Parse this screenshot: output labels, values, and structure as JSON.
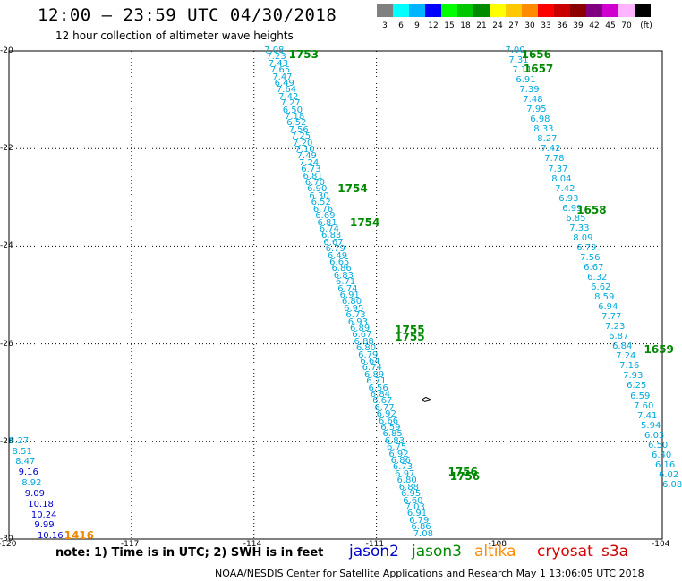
{
  "title": "12:00 – 23:59 UTC 04/30/2018",
  "subtitle": "12 hour collection of altimeter wave heights",
  "legend": {
    "unit": "(ft)",
    "bins": [
      {
        "label": "3",
        "color": "#808080"
      },
      {
        "label": "6",
        "color": "#00ffff"
      },
      {
        "label": "9",
        "color": "#00b4ff"
      },
      {
        "label": "12",
        "color": "#0000ff"
      },
      {
        "label": "15",
        "color": "#00ff00"
      },
      {
        "label": "18",
        "color": "#00c800"
      },
      {
        "label": "21",
        "color": "#008c00"
      },
      {
        "label": "24",
        "color": "#ffff00"
      },
      {
        "label": "27",
        "color": "#ffc800"
      },
      {
        "label": "30",
        "color": "#ff8c00"
      },
      {
        "label": "33",
        "color": "#ff0000"
      },
      {
        "label": "36",
        "color": "#c80000"
      },
      {
        "label": "39",
        "color": "#8c0000"
      },
      {
        "label": "42",
        "color": "#800080"
      },
      {
        "label": "45",
        "color": "#d000d0"
      },
      {
        "label": "70",
        "color": "#ffb4ff"
      },
      {
        "label": "",
        "color": "#000000"
      }
    ]
  },
  "map": {
    "lon_range": [
      -120,
      -104
    ],
    "lat_range": [
      -30,
      -20
    ],
    "lon_ticks": [
      "-120",
      "-117",
      "-114",
      "-111",
      "-108",
      "-104"
    ],
    "lat_ticks": [
      "-20",
      "-22",
      "-24",
      "-26",
      "-28",
      "-30"
    ]
  },
  "tracks": [
    {
      "name": "track-west",
      "color": "#00aadd",
      "start": [
        -113.75,
        -20.0
      ],
      "end": [
        -110.1,
        -29.9
      ],
      "values": [
        "7.08",
        "7.23",
        "7.43",
        "7.65",
        "7.47",
        "6.49",
        "7.64",
        "7.42",
        "7.27",
        "6.50",
        "7.18",
        "6.52",
        "7.56",
        "7.25",
        "7.20",
        "7.10",
        "7.49",
        "7.24",
        "6.73",
        "6.81",
        "6.70",
        "6.90",
        "6.30",
        "6.52",
        "6.76",
        "6.69",
        "6.81",
        "6.74",
        "6.83",
        "6.67",
        "6.79",
        "6.49",
        "6.65",
        "6.86",
        "6.83",
        "6.71",
        "6.74",
        "6.91",
        "6.80",
        "6.95",
        "6.73",
        "6.93",
        "6.89",
        "6.67",
        "6.88",
        "6.80",
        "6.79",
        "6.64",
        "6.74",
        "6.89",
        "6.71",
        "6.56",
        "6.84",
        "6.67",
        "6.77",
        "6.92",
        "6.66",
        "6.59",
        "6.85",
        "6.83",
        "6.75",
        "6.92",
        "6.86",
        "6.73",
        "6.97",
        "6.80",
        "6.88",
        "6.95",
        "6.60",
        "7.03",
        "6.91",
        "6.79",
        "6.86",
        "7.08"
      ]
    },
    {
      "name": "track-east",
      "color": "#00aadd",
      "start": [
        -107.85,
        -20.0
      ],
      "end": [
        -104.0,
        -28.9
      ],
      "values": [
        "7.00",
        "7.31",
        "7.11",
        "6.91",
        "7.39",
        "7.48",
        "7.95",
        "6.98",
        "8.33",
        "8.27",
        "7.42",
        "7.78",
        "7.37",
        "8.04",
        "7.42",
        "6.93",
        "6.99",
        "6.85",
        "7.33",
        "8.09",
        "6.79",
        "7.56",
        "6.67",
        "6.32",
        "6.62",
        "8.59",
        "6.94",
        "7.77",
        "7.23",
        "6.87",
        "6.84",
        "7.24",
        "7.16",
        "7.93",
        "6.25",
        "6.59",
        "7.60",
        "7.41",
        "5.94",
        "6.03",
        "6.50",
        "6.40",
        "6.16",
        "6.02",
        "6.08"
      ]
    },
    {
      "name": "track-sw",
      "start": [
        -120.0,
        -28.0
      ],
      "end": [
        -119.3,
        -29.95
      ],
      "points": [
        {
          "v": "8.27",
          "color": "#00aadd"
        },
        {
          "v": "8.51",
          "color": "#00aadd"
        },
        {
          "v": "8.47",
          "color": "#00aadd"
        },
        {
          "v": "9.16",
          "color": "#0000cc"
        },
        {
          "v": "8.92",
          "color": "#00aadd"
        },
        {
          "v": "9.09",
          "color": "#0000cc"
        },
        {
          "v": "10.18",
          "color": "#0000cc"
        },
        {
          "v": "10.24",
          "color": "#0000cc"
        },
        {
          "v": "9.99",
          "color": "#0000cc"
        },
        {
          "v": "10.16",
          "color": "#0000cc"
        }
      ]
    }
  ],
  "time_labels": [
    {
      "text": "1753",
      "lon": -113.15,
      "lat": -20.05,
      "color": "#008800"
    },
    {
      "text": "1754",
      "lon": -111.95,
      "lat": -22.8,
      "color": "#008800"
    },
    {
      "text": "1754",
      "lon": -111.65,
      "lat": -23.5,
      "color": "#008800"
    },
    {
      "text": "1755",
      "lon": -110.55,
      "lat": -25.7,
      "color": "#008800"
    },
    {
      "text": "1755",
      "lon": -110.55,
      "lat": -25.85,
      "color": "#008800"
    },
    {
      "text": "1756",
      "lon": -109.25,
      "lat": -28.6,
      "color": "#008800"
    },
    {
      "text": "1756",
      "lon": -109.2,
      "lat": -28.7,
      "color": "#008800"
    },
    {
      "text": "1656",
      "lon": -107.45,
      "lat": -20.05,
      "color": "#008800"
    },
    {
      "text": "1657",
      "lon": -107.4,
      "lat": -20.35,
      "color": "#008800"
    },
    {
      "text": "1658",
      "lon": -106.1,
      "lat": -23.25,
      "color": "#008800"
    },
    {
      "text": "1659",
      "lon": -104.45,
      "lat": -26.1,
      "color": "#008800"
    },
    {
      "text": "1416",
      "lon": -118.65,
      "lat": -29.9,
      "color": "#ee8800"
    }
  ],
  "note": "note:  1) Time is in UTC;  2) SWH is in feet",
  "missions": [
    {
      "name": "jason2",
      "color": "#0000cc"
    },
    {
      "name": "jason3",
      "color": "#008800"
    },
    {
      "name": "altika",
      "color": "#ff8c00"
    },
    {
      "name": "cryosat",
      "color": "#dd0000"
    },
    {
      "name": "s3a",
      "color": "#cc0000"
    }
  ],
  "footer": "NOAA/NESDIS Center for Satellite Applications and Research    May  1 13:06:05 UTC 2018"
}
